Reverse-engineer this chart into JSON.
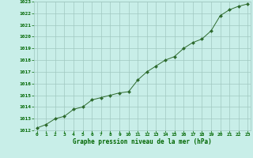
{
  "x": [
    0,
    1,
    2,
    3,
    4,
    5,
    6,
    7,
    8,
    9,
    10,
    11,
    12,
    13,
    14,
    15,
    16,
    17,
    18,
    19,
    20,
    21,
    22,
    23
  ],
  "y": [
    1012.2,
    1012.5,
    1013.0,
    1013.2,
    1013.8,
    1014.0,
    1014.6,
    1014.8,
    1015.0,
    1015.2,
    1015.3,
    1016.3,
    1017.0,
    1017.5,
    1018.0,
    1018.3,
    1019.0,
    1019.5,
    1019.8,
    1020.5,
    1021.8,
    1022.3,
    1022.6,
    1022.8
  ],
  "line_color": "#2d6a2d",
  "marker_color": "#2d6a2d",
  "bg_color": "#c8eee8",
  "grid_color": "#a0c8c0",
  "xlabel": "Graphe pression niveau de la mer (hPa)",
  "xlabel_color": "#006600",
  "tick_color": "#006600",
  "ylim_min": 1012,
  "ylim_max": 1023,
  "xlim_min": 0,
  "xlim_max": 23,
  "yticks": [
    1012,
    1013,
    1014,
    1015,
    1016,
    1017,
    1018,
    1019,
    1020,
    1021,
    1022,
    1023
  ],
  "xticks": [
    0,
    1,
    2,
    3,
    4,
    5,
    6,
    7,
    8,
    9,
    10,
    11,
    12,
    13,
    14,
    15,
    16,
    17,
    18,
    19,
    20,
    21,
    22,
    23
  ]
}
